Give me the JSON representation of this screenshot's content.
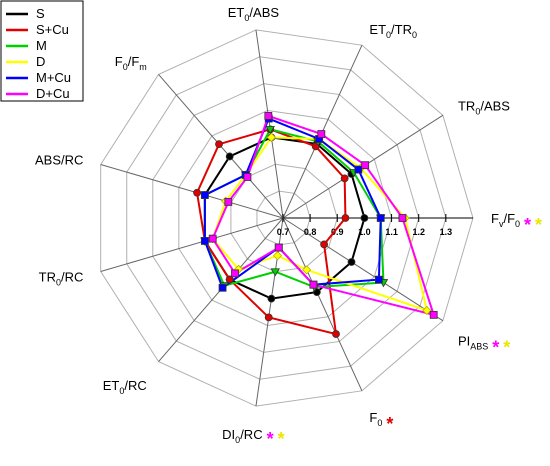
{
  "chart_data": {
    "type": "radar",
    "categories": [
      [
        "F",
        "v",
        "/F",
        "0"
      ],
      [
        "PI",
        "ABS"
      ],
      [
        "F",
        "0"
      ],
      [
        "DI",
        "0",
        "/RC"
      ],
      [
        "ET",
        "0",
        "/RC"
      ],
      [
        "TR",
        "0",
        "/RC"
      ],
      [
        "ABS/RC"
      ],
      [
        "F",
        "0",
        "/F",
        "m"
      ],
      [
        "ET",
        "0",
        "/ABS"
      ],
      [
        "ET",
        "0",
        "/TR",
        "0"
      ],
      [
        "TR",
        "0",
        "/ABS"
      ]
    ],
    "rlim": [
      0.7,
      1.4
    ],
    "rticks": [
      0.7,
      0.8,
      0.9,
      {
        "value": 1,
        "label": "1.0"
      },
      1.1,
      1.2,
      1.3
    ],
    "grid": true,
    "legend": "upper left",
    "series": [
      {
        "name": "S",
        "color": "#000000",
        "marker": "circle",
        "values": [
          1,
          1,
          1,
          1,
          1,
          1,
          1,
          1,
          1,
          1,
          1
        ]
      },
      {
        "name": "S+Cu",
        "color": "#e00000",
        "marker": "circle",
        "values": [
          0.93,
          0.88,
          1.17,
          1.07,
          1.0,
          1.0,
          1.03,
          1.06,
          1.03,
          0.99,
          0.97
        ]
      },
      {
        "name": "M",
        "color": "#00d000",
        "marker": "triangle",
        "values": [
          1.06,
          1.14,
          0.98,
          0.9,
          1.03,
          1.0,
          1.0,
          0.91,
          1.03,
          1.01,
          1.01
        ]
      },
      {
        "name": "D",
        "color": "#ffff00",
        "marker": "diamond",
        "values": [
          1.15,
          1.33,
          0.91,
          0.84,
          0.95,
          0.97,
          0.92,
          0.91,
          1.0,
          1.02,
          1.04
        ]
      },
      {
        "name": "M+Cu",
        "color": "#0000ff",
        "marker": "square",
        "values": [
          1.06,
          1.12,
          0.97,
          0.81,
          1.04,
          1.0,
          1.0,
          0.91,
          1.07,
          1.02,
          1.03
        ]
      },
      {
        "name": "D+Cu",
        "color": "#ff00ff",
        "marker": "square",
        "values": [
          1.14,
          1.36,
          0.97,
          0.81,
          0.97,
          0.97,
          0.91,
          0.9,
          1.08,
          1.04,
          1.06
        ]
      }
    ],
    "significance": [
      [
        {
          "text": "*",
          "color": "#ff00ff"
        },
        {
          "text": "*",
          "color": "#e8e800"
        }
      ],
      [
        {
          "text": "*",
          "color": "#ff00ff"
        },
        {
          "text": "*",
          "color": "#e8e800"
        }
      ],
      [
        {
          "text": "*",
          "color": "#e00000"
        }
      ],
      [
        {
          "text": "*",
          "color": "#ff00ff"
        },
        {
          "text": "*",
          "color": "#e8e800"
        }
      ],
      [],
      [],
      [],
      [],
      [],
      [],
      []
    ]
  }
}
